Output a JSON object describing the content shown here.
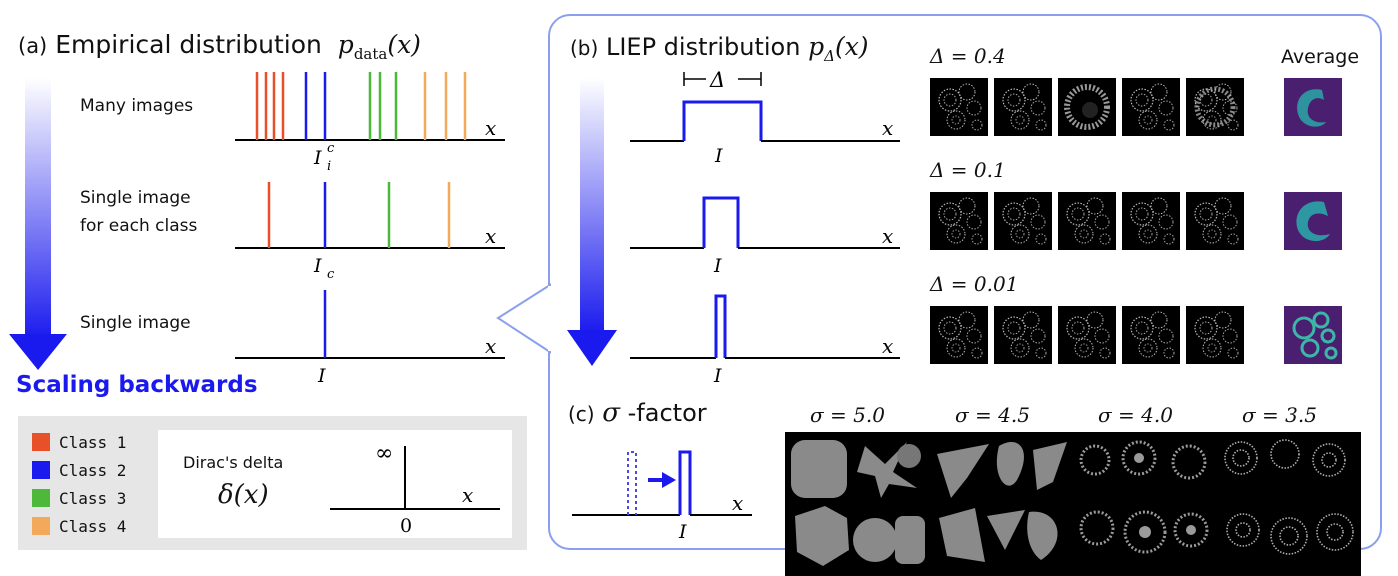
{
  "panel_a": {
    "label": "(a)",
    "title": "Empirical distribution",
    "math": "p_data(x)",
    "rows": [
      {
        "label": "Many images",
        "sub": "I",
        "sup": "c",
        "subsub": "i"
      },
      {
        "label_line1": "Single image",
        "label_line2": "for each class",
        "sub": "I",
        "subsub": "c"
      },
      {
        "label": "Single image",
        "sub": "I"
      }
    ],
    "axis_label": "x",
    "arrow_text": "Scaling backwards"
  },
  "legend": {
    "items": [
      {
        "label": "Class 1",
        "color": "#e8502a"
      },
      {
        "label": "Class 2",
        "color": "#1a1aee"
      },
      {
        "label": "Class 3",
        "color": "#4db83a"
      },
      {
        "label": "Class 4",
        "color": "#f2a95a"
      }
    ],
    "dirac_title": "Dirac's delta",
    "dirac_math": "δ(x)",
    "infinity": "∞",
    "zero": "0",
    "x": "x"
  },
  "panel_b": {
    "label": "(b)",
    "title": "LIEP distribution",
    "math": "p_Δ(x)",
    "delta": "Δ",
    "rows": [
      {
        "delta_label": "Δ = 0.4",
        "I": "I",
        "x": "x"
      },
      {
        "delta_label": "Δ = 0.1",
        "I": "I",
        "x": "x"
      },
      {
        "delta_label": "Δ = 0.01",
        "I": "I",
        "x": "x"
      }
    ],
    "average_label": "Average"
  },
  "panel_c": {
    "label": "(c)",
    "sigma_symbol": "σ",
    "title_suffix": "-factor",
    "I": "I",
    "x": "x",
    "sigmas": [
      "σ = 5.0",
      "σ = 4.5",
      "σ = 4.0",
      "σ = 3.5"
    ]
  }
}
